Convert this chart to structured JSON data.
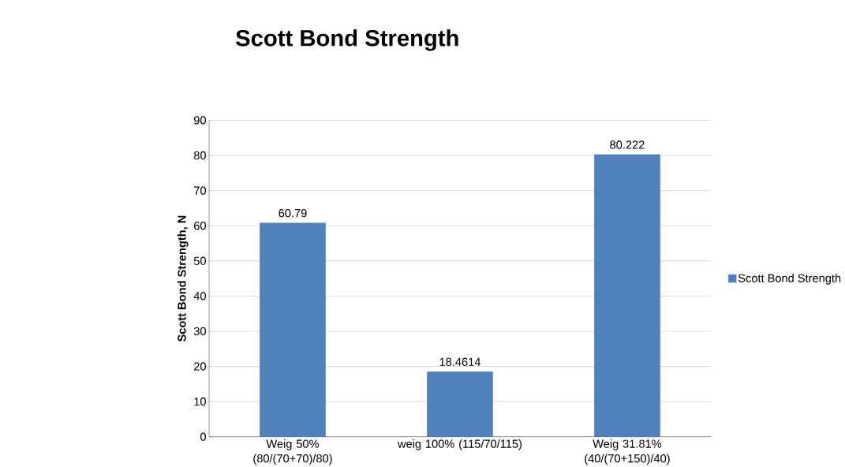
{
  "chart_data": {
    "type": "bar",
    "title": "Scott Bond Strength",
    "ylabel": "Scott Bond Strength, N",
    "categories": [
      "Weig 50% (80/(70+70)/80)",
      "weig 100% (115/70/115)",
      "Weig 31.81% (40/(70+150)/40)"
    ],
    "series": [
      {
        "name": "Scott Bond Strength",
        "color": "#4f81bd",
        "values": [
          60.79,
          18.4614,
          80.222
        ]
      }
    ],
    "ylim": [
      0,
      90
    ],
    "yticks": [
      0,
      10,
      20,
      30,
      40,
      50,
      60,
      70,
      80,
      90
    ],
    "grid": "y",
    "legend": "right",
    "data_labels": true
  }
}
